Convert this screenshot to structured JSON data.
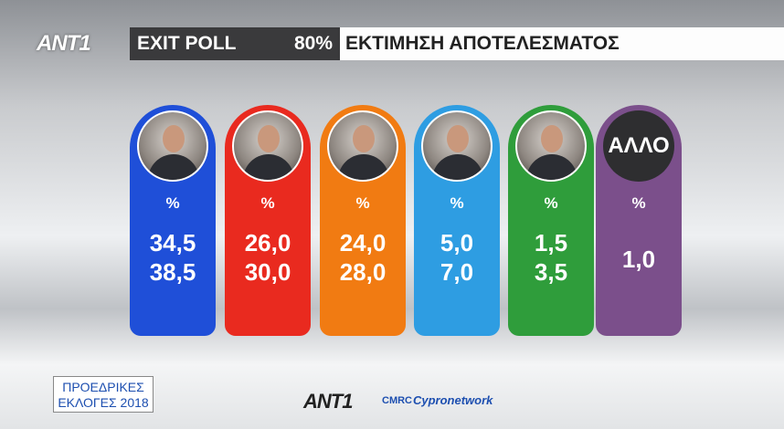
{
  "header": {
    "logo": "ANT1",
    "poll_label": "EXIT POLL",
    "counted": "80%",
    "title": "ΕΚΤΙΜΗΣΗ ΑΠΟΤΕΛΕΣΜΑΤΟΣ"
  },
  "columns": [
    {
      "color": "#1f4fd8",
      "unit": "%",
      "values": [
        "34,5",
        "38,5"
      ]
    },
    {
      "color": "#e92a1f",
      "unit": "%",
      "values": [
        "26,0",
        "30,0"
      ]
    },
    {
      "color": "#f17b12",
      "unit": "%",
      "values": [
        "24,0",
        "28,0"
      ]
    },
    {
      "color": "#2e9de2",
      "unit": "%",
      "values": [
        "5,0",
        "7,0"
      ]
    },
    {
      "color": "#2f9d3b",
      "unit": "%",
      "values": [
        "1,5",
        "3,5"
      ]
    },
    {
      "color": "#7b4f8b",
      "label": "ΑΛΛΟ",
      "unit": "%",
      "values": [
        "1,0"
      ]
    }
  ],
  "footer": {
    "line1": "ΠΡΟΕΔΡΙΚΕΣ",
    "line2": "ΕΚΛΟΓΕΣ 2018",
    "logo": "ANT1",
    "partner_a": "CMRC",
    "partner_b": "Cypronetwork"
  }
}
